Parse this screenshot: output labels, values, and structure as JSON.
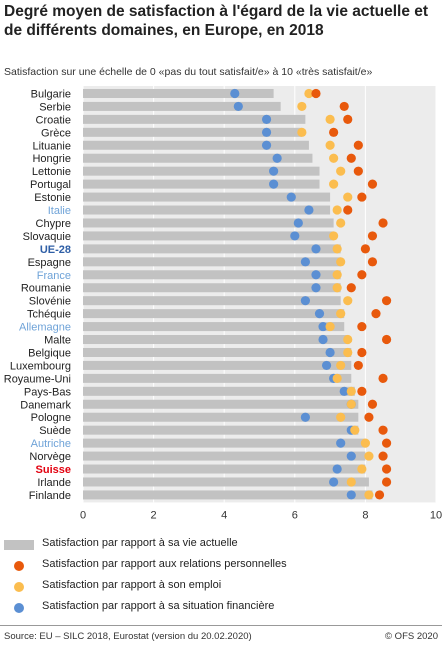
{
  "title": "Degré moyen de satisfaction à l'égard de la vie actuelle et de différents domaines, en Europe, en 2018",
  "subtitle": "Satisfaction sur une échelle de 0 «pas du tout satisfait/e» à 10 «très satisfait/e»",
  "legend": {
    "life": "Satisfaction par rapport à sa vie actuelle",
    "relations": "Satisfaction par rapport aux relations personnelles",
    "job": "Satisfaction par rapport à son emploi",
    "financial": "Satisfaction par rapport à sa situation financière"
  },
  "colors": {
    "bar": "#c2c2c2",
    "relations": "#e8590c",
    "job": "#fbbd4f",
    "financial": "#5b8fd3",
    "plot_bg": "#ececec",
    "label_default": "#222222",
    "label_eu": "#2f5fa6",
    "label_highlight": "#6fa3d8",
    "label_swiss": "#e3000f"
  },
  "source": "Source: EU – SILC 2018, Eurostat (version du 20.02.2020)",
  "copyright": "© OFS 2020",
  "chart_data": {
    "type": "bar",
    "orientation": "horizontal",
    "xlim": [
      0,
      10
    ],
    "xticks": [
      "0",
      "2",
      "4",
      "6",
      "8",
      "10"
    ],
    "grid": true,
    "categories": [
      "Bulgarie",
      "Serbie",
      "Croatie",
      "Grèce",
      "Lituanie",
      "Hongrie",
      "Lettonie",
      "Portugal",
      "Estonie",
      "Italie",
      "Chypre",
      "Slovaquie",
      "UE-28",
      "Espagne",
      "France",
      "Roumanie",
      "Slovénie",
      "Tchéquie",
      "Allemagne",
      "Malte",
      "Belgique",
      "Luxembourg",
      "Royaume-Uni",
      "Pays-Bas",
      "Danemark",
      "Pologne",
      "Suède",
      "Autriche",
      "Norvège",
      "Suisse",
      "Irlande",
      "Finlande"
    ],
    "category_styles": [
      "default",
      "default",
      "default",
      "default",
      "default",
      "default",
      "default",
      "default",
      "default",
      "highlight",
      "default",
      "default",
      "eu",
      "default",
      "highlight",
      "default",
      "default",
      "default",
      "highlight",
      "default",
      "default",
      "default",
      "default",
      "default",
      "default",
      "default",
      "default",
      "highlight",
      "default",
      "swiss",
      "default",
      "default"
    ],
    "series": [
      {
        "name": "Satisfaction par rapport à sa vie actuelle",
        "mark": "bar",
        "values": [
          5.4,
          5.6,
          6.3,
          6.2,
          6.4,
          6.5,
          6.7,
          6.7,
          7.0,
          7.0,
          7.1,
          7.1,
          7.3,
          7.3,
          7.3,
          7.3,
          7.3,
          7.4,
          7.4,
          7.5,
          7.6,
          7.6,
          7.6,
          7.7,
          7.8,
          7.8,
          7.8,
          8.0,
          8.0,
          8.0,
          8.1,
          8.2
        ]
      },
      {
        "name": "Satisfaction par rapport aux relations personnelles",
        "mark": "dot",
        "values": [
          6.6,
          7.4,
          7.5,
          7.1,
          7.8,
          7.6,
          7.8,
          8.2,
          7.9,
          7.5,
          8.5,
          8.2,
          8.0,
          8.2,
          7.9,
          7.6,
          8.6,
          8.3,
          7.9,
          8.6,
          7.9,
          7.8,
          8.5,
          7.9,
          8.2,
          8.1,
          8.5,
          8.6,
          8.5,
          8.6,
          8.6,
          8.4
        ]
      },
      {
        "name": "Satisfaction par rapport à son emploi",
        "mark": "dot",
        "values": [
          6.4,
          6.2,
          7.0,
          6.2,
          7.0,
          7.1,
          7.3,
          7.1,
          7.5,
          7.2,
          7.3,
          7.1,
          7.2,
          7.3,
          7.2,
          7.2,
          7.5,
          7.3,
          7.0,
          7.5,
          7.5,
          7.3,
          7.2,
          7.6,
          7.6,
          7.3,
          7.7,
          8.0,
          8.1,
          7.9,
          7.6,
          8.1
        ]
      },
      {
        "name": "Satisfaction par rapport à sa situation financière",
        "mark": "dot",
        "values": [
          4.3,
          4.4,
          5.2,
          5.2,
          5.2,
          5.5,
          5.4,
          5.4,
          5.9,
          6.4,
          6.1,
          6.0,
          6.6,
          6.3,
          6.6,
          6.6,
          6.3,
          6.7,
          6.8,
          6.8,
          7.0,
          6.9,
          7.1,
          7.4,
          7.6,
          6.3,
          7.6,
          7.3,
          7.6,
          7.2,
          7.1,
          7.6
        ]
      }
    ]
  }
}
